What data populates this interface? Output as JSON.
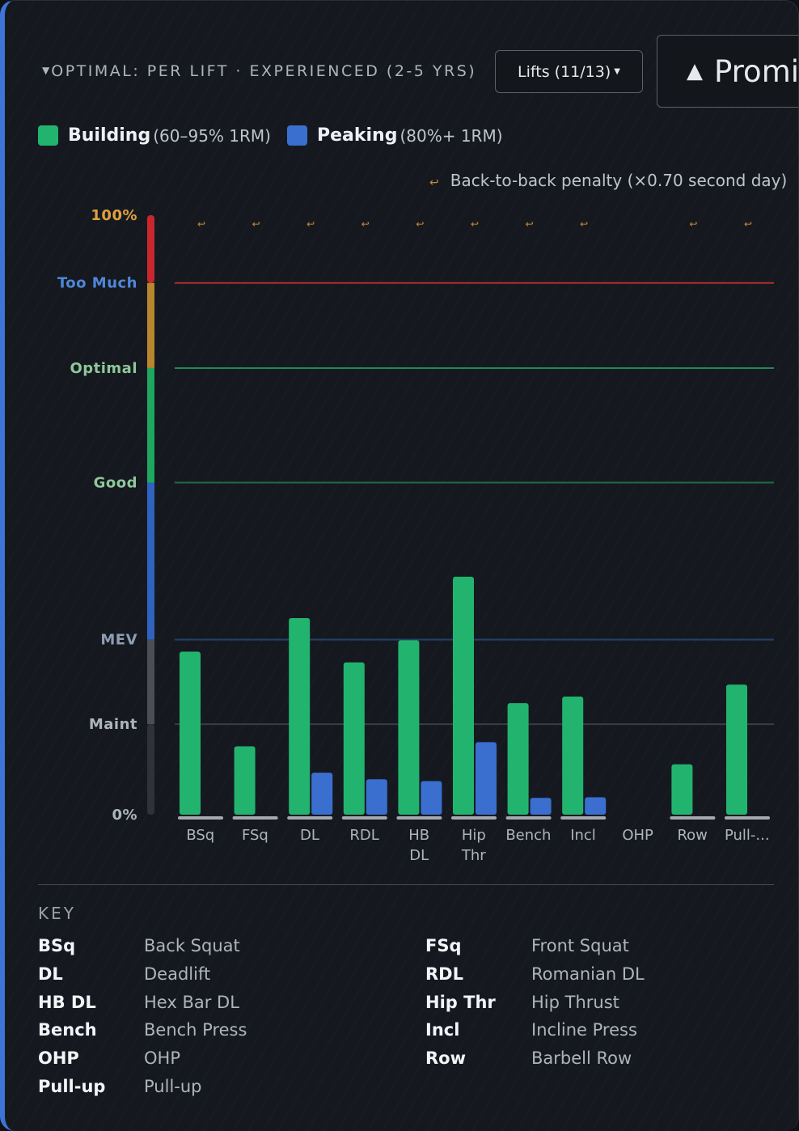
{
  "header": {
    "title": "OPTIMAL: PER LIFT · EXPERIENCED (2-5 YRS)",
    "lifts_button": "Lifts (11/13)",
    "prominent_button": "Promi"
  },
  "legend": [
    {
      "label": "Building",
      "range": "(60–95% 1RM)",
      "color": "#22b46e"
    },
    {
      "label": "Peaking",
      "range": "(80%+ 1RM)",
      "color": "#3a6fd0"
    }
  ],
  "penalty_note": "Back-to-back penalty (×0.70 second day)",
  "colors": {
    "building": "#22b46e",
    "peaking": "#3a6fd0",
    "too_much_line": "#b02d2d",
    "optimal_line": "#1f8a55",
    "good_line": "#1e6b45",
    "mev_line": "#26406b",
    "maint_line": "#3a3d42",
    "penalty_icon": "#c98a3a"
  },
  "chart_data": {
    "type": "bar",
    "ylim": [
      0,
      100
    ],
    "zones": [
      {
        "label": "100%",
        "value": 100,
        "color": "#e0a040"
      },
      {
        "label": "Too Much",
        "value": 88.7,
        "color": "#4f86d8"
      },
      {
        "label": "Optimal",
        "value": 74.5,
        "color": "#8fc79a"
      },
      {
        "label": "Good",
        "value": 55.4,
        "color": "#8fc79a"
      },
      {
        "label": "MEV",
        "value": 29.2,
        "color": "#8e9db3"
      },
      {
        "label": "Maint",
        "value": 15.1,
        "color": "#aeb4bd"
      },
      {
        "label": "0%",
        "value": 0,
        "color": "#aeb4bd"
      }
    ],
    "categories": [
      "BSq",
      "FSq",
      "DL",
      "RDL",
      "HB DL",
      "Hip Thr",
      "Bench",
      "Incl",
      "OHP",
      "Row",
      "Pull-..."
    ],
    "series": [
      {
        "name": "Building",
        "values": [
          27.2,
          11.4,
          32.8,
          25.4,
          29.1,
          39.7,
          18.6,
          19.7,
          0,
          8.4,
          21.7
        ]
      },
      {
        "name": "Peaking",
        "values": [
          0,
          0,
          7.0,
          5.9,
          5.6,
          12.1,
          2.8,
          2.9,
          0,
          0,
          0
        ]
      }
    ],
    "penalty_flags": [
      true,
      true,
      true,
      true,
      true,
      true,
      true,
      true,
      false,
      true,
      true
    ]
  },
  "key": {
    "title": "KEY",
    "items": [
      {
        "abbr": "BSq",
        "full": "Back Squat"
      },
      {
        "abbr": "FSq",
        "full": "Front Squat"
      },
      {
        "abbr": "DL",
        "full": "Deadlift"
      },
      {
        "abbr": "RDL",
        "full": "Romanian DL"
      },
      {
        "abbr": "HB DL",
        "full": "Hex Bar DL"
      },
      {
        "abbr": "Hip Thr",
        "full": "Hip Thrust"
      },
      {
        "abbr": "Bench",
        "full": "Bench Press"
      },
      {
        "abbr": "Incl",
        "full": "Incline Press"
      },
      {
        "abbr": "OHP",
        "full": "OHP"
      },
      {
        "abbr": "Row",
        "full": "Barbell Row"
      },
      {
        "abbr": "Pull-up",
        "full": "Pull-up"
      }
    ]
  }
}
